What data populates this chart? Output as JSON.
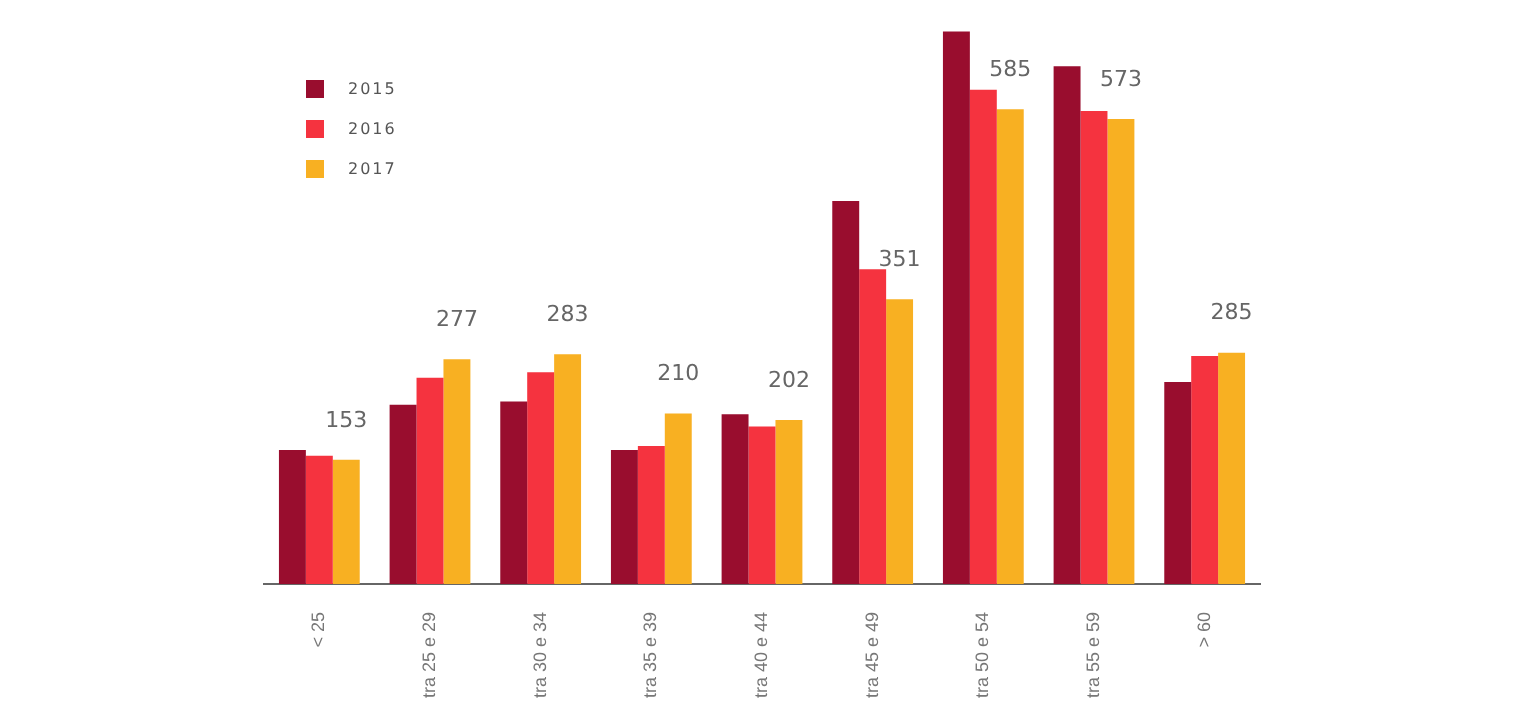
{
  "chart_data": {
    "type": "bar",
    "categories": [
      "< 25",
      "tra 25 e 29",
      "tra 30 e 34",
      "tra 35 e 39",
      "tra 40 e 44",
      "tra 45 e 49",
      "tra 50 e 54",
      "tra 55 e 59",
      "> 60"
    ],
    "series": [
      {
        "name": "2015",
        "color": "#990d2e",
        "values": [
          165,
          221,
          225,
          165,
          209,
          472,
          681,
          638,
          249
        ]
      },
      {
        "name": "2016",
        "color": "#f5333f",
        "values": [
          158,
          254,
          261,
          170,
          194,
          388,
          609,
          583,
          281
        ]
      },
      {
        "name": "2017",
        "color": "#f8b022",
        "values": [
          153,
          277,
          283,
          210,
          202,
          351,
          585,
          573,
          285
        ],
        "value_labels": [
          "153",
          "277",
          "283",
          "210",
          "202",
          "351",
          "585",
          "573",
          "285"
        ]
      }
    ],
    "legend": "top left",
    "grid": false
  }
}
